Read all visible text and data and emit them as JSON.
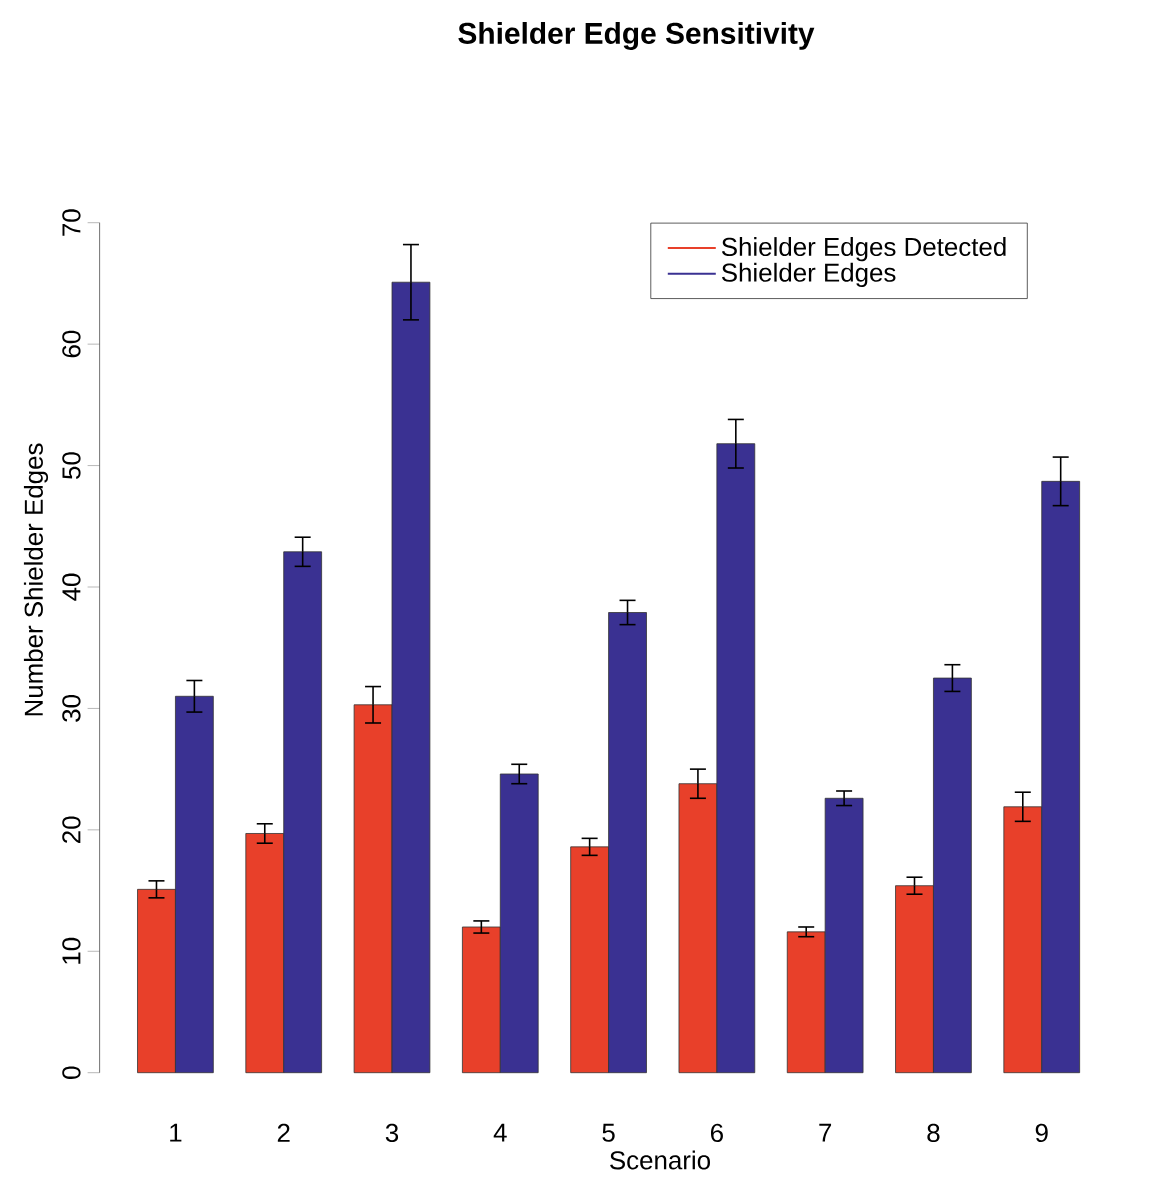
{
  "chart_data": {
    "type": "bar",
    "title": "Shielder Edge Sensitivity",
    "xlabel": "Scenario",
    "ylabel": "Number Shielder Edges",
    "categories": [
      "1",
      "2",
      "3",
      "4",
      "5",
      "6",
      "7",
      "8",
      "9"
    ],
    "series": [
      {
        "name": "Shielder Edges Detected",
        "color": "#e8402a",
        "values": [
          15.1,
          19.7,
          30.3,
          12.0,
          18.6,
          23.8,
          11.6,
          15.4,
          21.9
        ],
        "errors": [
          0.7,
          0.8,
          1.5,
          0.5,
          0.7,
          1.2,
          0.4,
          0.7,
          1.2
        ]
      },
      {
        "name": "Shielder Edges",
        "color": "#3a3192",
        "values": [
          31.0,
          42.9,
          65.1,
          24.6,
          37.9,
          51.8,
          22.6,
          32.5,
          48.7
        ],
        "errors": [
          1.3,
          1.2,
          3.1,
          0.8,
          1.0,
          2.0,
          0.6,
          1.1,
          2.0
        ]
      }
    ],
    "ylim": [
      0,
      70
    ],
    "yticks": [
      0,
      10,
      20,
      30,
      40,
      50,
      60,
      70
    ],
    "legend": "top right"
  }
}
